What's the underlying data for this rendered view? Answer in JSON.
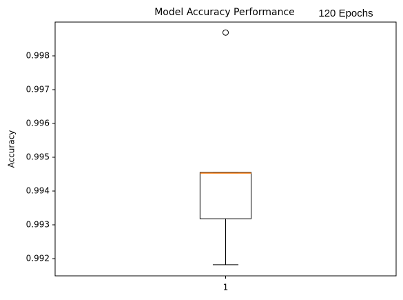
{
  "chart_data": {
    "type": "box",
    "title": "Model Accuracy Performance",
    "subtitle": "120 Epochs",
    "ylabel": "Accuracy",
    "categories": [
      "1"
    ],
    "boxes": [
      {
        "whislo": 0.99182,
        "q1": 0.99318,
        "med": 0.99453,
        "q3": 0.99455,
        "whishi": 0.99455,
        "fliers": [
          0.99869
        ]
      }
    ],
    "color": "#000000",
    "median_color": "#ff7f0e",
    "xlim": [
      0.5,
      1.5
    ],
    "xticks": [
      1
    ],
    "ylim": [
      0.99149,
      0.999
    ],
    "yticks": [
      0.992,
      0.993,
      0.994,
      0.995,
      0.996,
      0.997,
      0.998
    ],
    "grid": false
  }
}
